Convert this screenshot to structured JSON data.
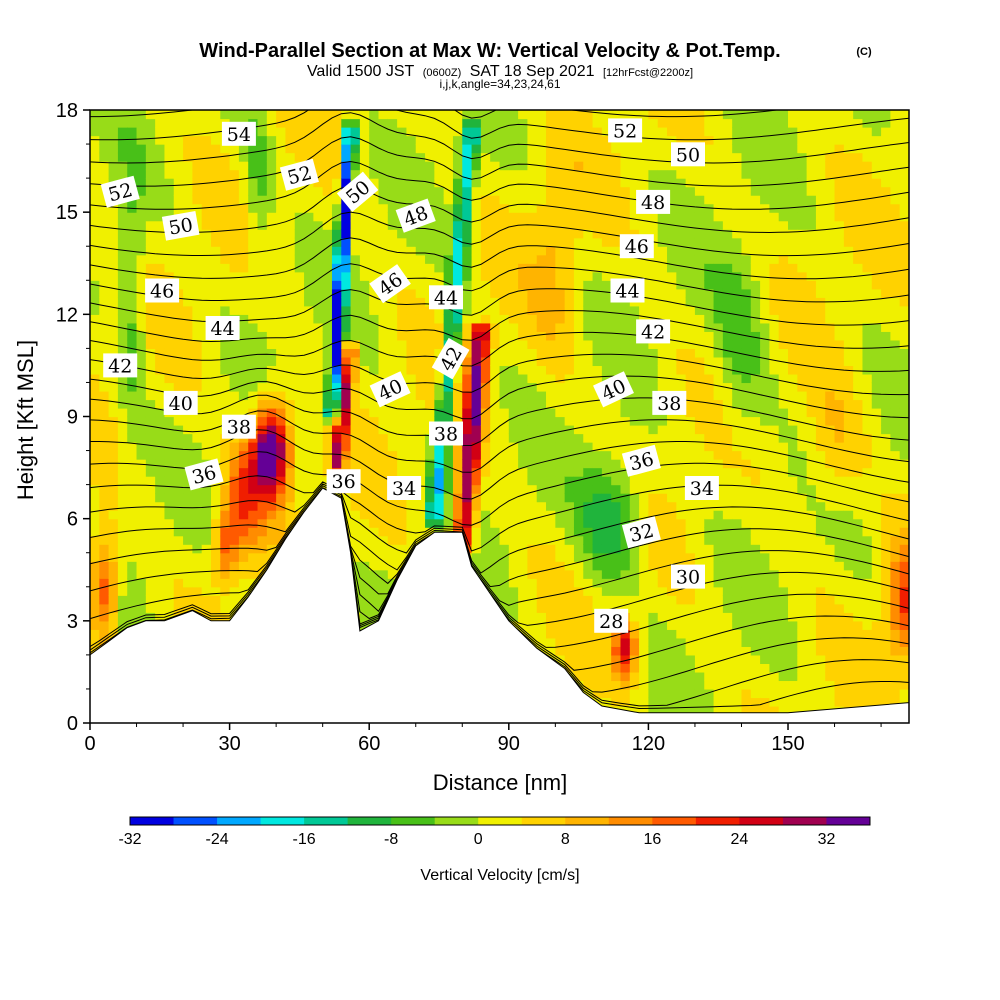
{
  "title": {
    "main": "Wind-Parallel Section at Max W: Vertical Velocity & Pot.Temp.",
    "copyright": "(C)",
    "valid_prefix": "Valid 1500 JST",
    "valid_utc": "(0600Z)",
    "valid_date": "SAT 18 Sep 2021",
    "forecast": "[12hrFcst@2200z]",
    "indices": "i,j,k,angle=34,23,24,61"
  },
  "chart_data": {
    "type": "heatmap",
    "xlabel": "Distance [nm]",
    "ylabel": "Height [Kft MSL]",
    "xlim": [
      0,
      176
    ],
    "ylim": [
      0,
      18
    ],
    "x_ticks": [
      "0",
      "30",
      "60",
      "90",
      "120",
      "150"
    ],
    "y_ticks": [
      "0",
      "3",
      "6",
      "9",
      "12",
      "15",
      "18"
    ],
    "colorbar": {
      "label": "Vertical Velocity [cm/s]",
      "range": [
        -32,
        36
      ],
      "step": 4,
      "tick_labels": [
        "-32",
        "-24",
        "-16",
        "-8",
        "0",
        "8",
        "16",
        "24",
        "32"
      ],
      "colors": [
        "#0000e0",
        "#0050ff",
        "#00a8ff",
        "#00e8e0",
        "#00c896",
        "#20b43c",
        "#48c018",
        "#98dc18",
        "#f0f000",
        "#ffd200",
        "#ffb400",
        "#ff8c00",
        "#ff5a00",
        "#f01e00",
        "#d20014",
        "#a00050",
        "#640096"
      ]
    },
    "terrain": [
      [
        0,
        2.0
      ],
      [
        4,
        2.4
      ],
      [
        8,
        2.8
      ],
      [
        12,
        3.0
      ],
      [
        16,
        3.0
      ],
      [
        22,
        3.3
      ],
      [
        26,
        3.0
      ],
      [
        30,
        3.0
      ],
      [
        34,
        3.7
      ],
      [
        38,
        4.5
      ],
      [
        42,
        5.4
      ],
      [
        46,
        6.2
      ],
      [
        50,
        6.9
      ],
      [
        54,
        6.6
      ],
      [
        56,
        5.0
      ],
      [
        58,
        2.7
      ],
      [
        62,
        3.0
      ],
      [
        66,
        4.2
      ],
      [
        70,
        5.2
      ],
      [
        74,
        5.6
      ],
      [
        80,
        5.6
      ],
      [
        82,
        4.6
      ],
      [
        86,
        3.8
      ],
      [
        90,
        3.0
      ],
      [
        96,
        2.2
      ],
      [
        102,
        1.6
      ],
      [
        106,
        0.9
      ],
      [
        110,
        0.5
      ],
      [
        118,
        0.3
      ],
      [
        150,
        0.3
      ],
      [
        176,
        0.6
      ]
    ],
    "theta_contour_labels": [
      {
        "v": "54",
        "x": 32,
        "y": 17.3,
        "rot": 0
      },
      {
        "v": "52",
        "x": 6.5,
        "y": 15.6,
        "rot": -15
      },
      {
        "v": "52",
        "x": 45,
        "y": 16.1,
        "rot": -15
      },
      {
        "v": "52",
        "x": 115,
        "y": 17.4,
        "rot": 0
      },
      {
        "v": "50",
        "x": 19.5,
        "y": 14.6,
        "rot": -10
      },
      {
        "v": "50",
        "x": 57.5,
        "y": 15.6,
        "rot": -40
      },
      {
        "v": "50",
        "x": 128.5,
        "y": 16.7,
        "rot": 0
      },
      {
        "v": "48",
        "x": 70,
        "y": 14.9,
        "rot": -20
      },
      {
        "v": "48",
        "x": 121,
        "y": 15.3,
        "rot": 0
      },
      {
        "v": "46",
        "x": 15.5,
        "y": 12.7,
        "rot": 0
      },
      {
        "v": "46",
        "x": 64.5,
        "y": 12.9,
        "rot": -35
      },
      {
        "v": "46",
        "x": 117.5,
        "y": 14.0,
        "rot": 0
      },
      {
        "v": "44",
        "x": 28.5,
        "y": 11.6,
        "rot": 0
      },
      {
        "v": "44",
        "x": 76.5,
        "y": 12.5,
        "rot": 0
      },
      {
        "v": "44",
        "x": 115.5,
        "y": 12.7,
        "rot": 0
      },
      {
        "v": "42",
        "x": 6.5,
        "y": 10.5,
        "rot": 0
      },
      {
        "v": "42",
        "x": 77.5,
        "y": 10.7,
        "rot": -60
      },
      {
        "v": "42",
        "x": 121,
        "y": 11.5,
        "rot": 0
      },
      {
        "v": "40",
        "x": 19.5,
        "y": 9.4,
        "rot": 0
      },
      {
        "v": "40",
        "x": 64.5,
        "y": 9.8,
        "rot": -25
      },
      {
        "v": "40",
        "x": 112.5,
        "y": 9.8,
        "rot": -25
      },
      {
        "v": "38",
        "x": 32,
        "y": 8.7,
        "rot": 0
      },
      {
        "v": "38",
        "x": 76.5,
        "y": 8.5,
        "rot": 0
      },
      {
        "v": "38",
        "x": 124.5,
        "y": 9.4,
        "rot": 0
      },
      {
        "v": "36",
        "x": 24.5,
        "y": 7.3,
        "rot": -15
      },
      {
        "v": "36",
        "x": 54.5,
        "y": 7.1,
        "rot": 0
      },
      {
        "v": "36",
        "x": 118.5,
        "y": 7.7,
        "rot": -15
      },
      {
        "v": "34",
        "x": 67.5,
        "y": 6.9,
        "rot": 0
      },
      {
        "v": "34",
        "x": 131.5,
        "y": 6.9,
        "rot": 0
      },
      {
        "v": "32",
        "x": 118.5,
        "y": 5.6,
        "rot": -15
      },
      {
        "v": "30",
        "x": 128.5,
        "y": 4.3,
        "rot": 0
      },
      {
        "v": "28",
        "x": 112,
        "y": 3.0,
        "rot": 0
      }
    ]
  }
}
